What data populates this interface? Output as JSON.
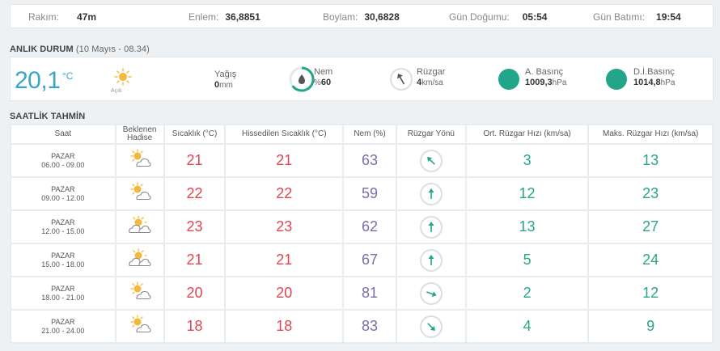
{
  "info": {
    "altitude_label": "Rakım:",
    "altitude": "47m",
    "lat_label": "Enlem:",
    "lat": "36,8851",
    "lon_label": "Boylam:",
    "lon": "30,6828",
    "sunrise_label": "Gün Doğumu:",
    "sunrise": "05:54",
    "sunset_label": "Gün Batımı:",
    "sunset": "19:54"
  },
  "current": {
    "title": "ANLIK DURUM",
    "time": "(10 Mayıs - 08.34)",
    "temp": "20,1",
    "unit": "°C",
    "desc": "Açık",
    "rain_label": "Yağış",
    "rain_value": "0",
    "rain_unit": "mm",
    "hum_label": "Nem",
    "hum_prefix": "%",
    "hum_value": "60",
    "wind_label": "Rüzgar",
    "wind_value": "4",
    "wind_unit": "km/sa",
    "pressure_label": "A. Basınç",
    "pressure_value": "1009,3",
    "pressure_unit": "hPa",
    "sea_pressure_label": "D.İ.Basınç",
    "sea_pressure_value": "1014,8",
    "sea_pressure_unit": "hPa",
    "icon": "sun-icon"
  },
  "hourly": {
    "title": "SAATLİK TAHMİN",
    "headers": {
      "time": "Saat",
      "event_1": "Beklenen",
      "event_2": "Hadise",
      "temp": "Sıcaklık (°C)",
      "feels": "Hissedilen Sıcaklık (°C)",
      "hum": "Nem (%)",
      "wind_dir": "Rüzgar Yönü",
      "wind_avg": "Ort. Rüzgar Hızı (km/sa)",
      "wind_max": "Maks. Rüzgar Hızı (km/sa)"
    },
    "rows": [
      {
        "day": "PAZAR",
        "range": "06.00 - 09.00",
        "icon": "partly-cloudy-icon",
        "temp": "21",
        "feels": "21",
        "hum": "63",
        "dir_deg": 315,
        "avg": "3",
        "max": "13"
      },
      {
        "day": "PAZAR",
        "range": "09.00 - 12.00",
        "icon": "partly-cloudy-icon",
        "temp": "22",
        "feels": "22",
        "hum": "59",
        "dir_deg": 0,
        "avg": "12",
        "max": "23"
      },
      {
        "day": "PAZAR",
        "range": "12.00 - 15.00",
        "icon": "cloudy-sun-icon",
        "temp": "23",
        "feels": "23",
        "hum": "62",
        "dir_deg": 0,
        "avg": "13",
        "max": "27"
      },
      {
        "day": "PAZAR",
        "range": "15.00 - 18.00",
        "icon": "cloudy-sun-icon",
        "temp": "21",
        "feels": "21",
        "hum": "67",
        "dir_deg": 0,
        "avg": "5",
        "max": "24"
      },
      {
        "day": "PAZAR",
        "range": "18.00 - 21.00",
        "icon": "partly-cloudy-icon",
        "temp": "20",
        "feels": "20",
        "hum": "81",
        "dir_deg": 110,
        "avg": "2",
        "max": "12"
      },
      {
        "day": "PAZAR",
        "range": "21.00 - 24.00",
        "icon": "partly-cloudy-icon",
        "temp": "18",
        "feels": "18",
        "hum": "83",
        "dir_deg": 135,
        "avg": "4",
        "max": "9"
      }
    ]
  },
  "colors": {
    "accent": "#3aa6c6",
    "red": "#e04552",
    "purple": "#7b6ea8",
    "green": "#2ba58a"
  }
}
